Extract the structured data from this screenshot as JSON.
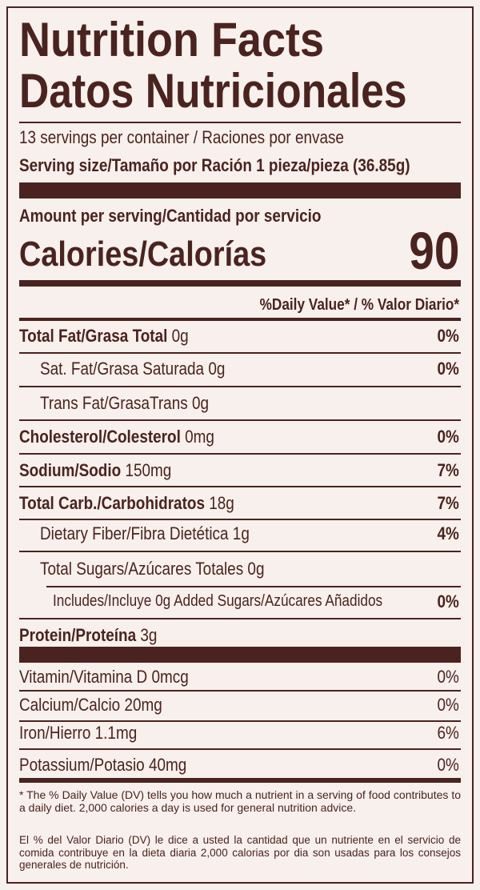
{
  "header": {
    "title": "Nutrition Facts",
    "subtitle": "Datos Nutricionales",
    "servings": "13 servings per container / Raciones por envase",
    "serving_size": "Serving size/Tamaño por Ración 1 pieza/pieza (36.85g)"
  },
  "calories": {
    "amount_label": "Amount per serving/Cantidad por servicio",
    "label": "Calories/Calorías",
    "value": 90
  },
  "dv_header": "%Daily Value* / % Valor Diario*",
  "nutrients": [
    {
      "name": "Total Fat/Grasa Total",
      "amount": "0g",
      "dv": "0%"
    },
    {
      "name": "Sat. Fat/Grasa Saturada",
      "amount": "0g",
      "dv": "0%"
    },
    {
      "name": "Trans Fat/GrasaTrans",
      "amount": "0g"
    },
    {
      "name": "Cholesterol/Colesterol",
      "amount": "0mg",
      "dv": "0%"
    },
    {
      "name": "Sodium/Sodio",
      "amount": "150mg",
      "dv": "7%"
    },
    {
      "name": "Total Carb./Carbohidratos",
      "amount": "18g",
      "dv": "7%"
    },
    {
      "name": "Dietary Fiber/Fibra Dietética",
      "amount": "1g",
      "dv": "4%"
    },
    {
      "name": "Total Sugars/Azúcares Totales",
      "amount": "0g"
    },
    {
      "name": "Includes/Incluye 0g Added Sugars/Azúcares Añadidos",
      "dv": "0%"
    },
    {
      "name": "Protein/Proteína",
      "amount": "3g"
    }
  ],
  "vitamins": [
    {
      "name": "Vitamin/Vitamina D",
      "amount": "0mcg",
      "dv": "0%"
    },
    {
      "name": "Calcium/Calcio",
      "amount": "20mg",
      "dv": "0%"
    },
    {
      "name": "Iron/Hierro",
      "amount": "1.1mg",
      "dv": "6%"
    },
    {
      "name": "Potassium/Potasio",
      "amount": "40mg",
      "dv": "0%"
    }
  ],
  "footnote": [
    "* The % Daily Value (DV) tells you how much a nutrient in a serving of food contributes to a daily diet. 2,000 calories a day is used for general nutrition advice.",
    "El % del Valor Diario (DV) le dice a usted la cantidad que un nutriente en el servicio de comida contribuye en la dieta diaria 2,000 calorias por dia son usadas para los consejos generales de nutrición."
  ]
}
